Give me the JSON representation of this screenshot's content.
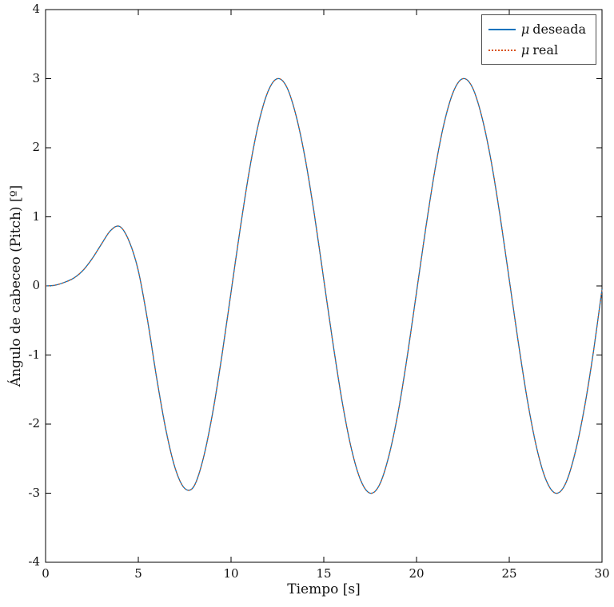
{
  "chart_data": {
    "type": "line",
    "title": "",
    "xlabel": "Tiempo [s]",
    "ylabel": "Ángulo de cabeceo (Pitch) [º]",
    "xlim": [
      0,
      30
    ],
    "ylim": [
      -4,
      4
    ],
    "xticks": [
      0,
      5,
      10,
      15,
      20,
      25,
      30
    ],
    "yticks": [
      4,
      3,
      2,
      1,
      0,
      -1,
      -2,
      -3,
      -4
    ],
    "grid": false,
    "box": true,
    "legend_position": "top-right",
    "axis_color": "#000000",
    "x": [
      0,
      0.5,
      1,
      1.5,
      2,
      2.5,
      3,
      3.5,
      4,
      4.5,
      5,
      5.5,
      6,
      6.5,
      7,
      7.5,
      8,
      8.5,
      9,
      9.5,
      10,
      10.5,
      11,
      11.5,
      12,
      12.5,
      13,
      13.5,
      14,
      14.5,
      15,
      15.5,
      16,
      16.5,
      17,
      17.5,
      18,
      18.5,
      19,
      19.5,
      20,
      20.5,
      21,
      21.5,
      22,
      22.5,
      23,
      23.5,
      24,
      24.5,
      25,
      25.5,
      26,
      26.5,
      27,
      27.5,
      28,
      28.5,
      29,
      29.5,
      30
    ],
    "series": [
      {
        "name": "μ deseada",
        "symbol": "μ",
        "label": "deseada",
        "color": "#0072BD",
        "style": "solid",
        "line_width": 1.3,
        "values": [
          0,
          0.01,
          0.05,
          0.11,
          0.22,
          0.39,
          0.6,
          0.8,
          0.86,
          0.65,
          0.22,
          -0.5,
          -1.35,
          -2.1,
          -2.65,
          -2.93,
          -2.9,
          -2.5,
          -1.85,
          -1.02,
          -0.09,
          0.84,
          1.69,
          2.37,
          2.82,
          3,
          2.88,
          2.47,
          1.84,
          1.02,
          0.09,
          -0.84,
          -1.69,
          -2.37,
          -2.82,
          -3,
          -2.88,
          -2.47,
          -1.84,
          -1.02,
          -0.09,
          0.84,
          1.69,
          2.37,
          2.82,
          3,
          2.88,
          2.47,
          1.84,
          1.02,
          0.09,
          -0.84,
          -1.69,
          -2.37,
          -2.82,
          -3,
          -2.88,
          -2.47,
          -1.84,
          -1.02,
          -0.05
        ]
      },
      {
        "name": "μ real",
        "symbol": "μ",
        "label": "real",
        "color": "#D95319",
        "style": "dotted",
        "line_width": 1.4,
        "values": [
          0,
          0.01,
          0.05,
          0.11,
          0.22,
          0.39,
          0.6,
          0.8,
          0.86,
          0.65,
          0.22,
          -0.5,
          -1.35,
          -2.1,
          -2.65,
          -2.93,
          -2.9,
          -2.5,
          -1.85,
          -1.02,
          -0.09,
          0.84,
          1.69,
          2.37,
          2.82,
          3,
          2.88,
          2.47,
          1.84,
          1.02,
          0.09,
          -0.84,
          -1.69,
          -2.37,
          -2.82,
          -3,
          -2.88,
          -2.47,
          -1.84,
          -1.02,
          -0.09,
          0.84,
          1.69,
          2.37,
          2.82,
          3,
          2.88,
          2.47,
          1.84,
          1.02,
          0.09,
          -0.84,
          -1.69,
          -2.37,
          -2.82,
          -3,
          -2.88,
          -2.47,
          -1.84,
          -1.02,
          -0.05
        ]
      }
    ]
  },
  "layout_note": "Two overlapping sinusoidal pitch-angle traces; desired vs real signal, nearly identical."
}
